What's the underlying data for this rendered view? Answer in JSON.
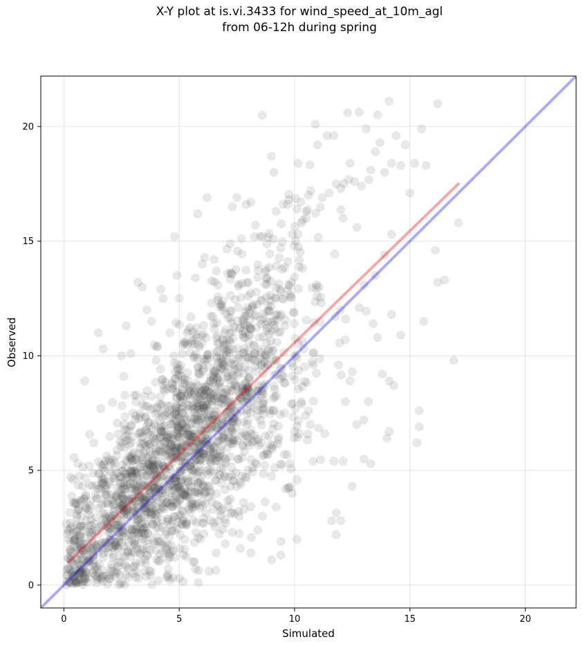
{
  "chart_data": {
    "type": "scatter",
    "title_line1": "X-Y plot at is.vi.3433 for wind_speed_at_10m_agl",
    "title_line2": "from 06-12h during spring",
    "xlabel": "Simulated",
    "ylabel": "Observed",
    "xlim": [
      -1.0,
      22.2
    ],
    "ylim": [
      -1.0,
      22.2
    ],
    "xticks": [
      0,
      5,
      10,
      15,
      20
    ],
    "yticks": [
      0,
      5,
      10,
      15,
      20
    ],
    "grid": true,
    "point_color": "#444444",
    "point_opacity": 0.12,
    "identity_line": {
      "color": "#0000ee",
      "opacity": 0.33,
      "from": [
        -1.0,
        -1.0
      ],
      "to": [
        22.2,
        22.2
      ]
    },
    "fit_line": {
      "color": "#ee0000",
      "opacity": 0.35,
      "from": [
        0.2,
        1.0
      ],
      "to": [
        17.1,
        17.5
      ]
    },
    "points": [
      [
        0.3,
        4.7
      ],
      [
        0.4,
        3.6
      ],
      [
        0.5,
        0.6
      ],
      [
        0.6,
        5.3
      ],
      [
        0.9,
        8.9
      ],
      [
        1.1,
        5.2
      ],
      [
        1.5,
        11.0
      ],
      [
        1.6,
        7.7
      ],
      [
        1.7,
        10.3
      ],
      [
        2.5,
        10.0
      ],
      [
        2.6,
        9.1
      ],
      [
        2.7,
        11.3
      ],
      [
        2.9,
        10.1
      ],
      [
        3.0,
        7.5
      ],
      [
        3.2,
        13.2
      ],
      [
        3.4,
        13.0
      ],
      [
        3.6,
        12.0
      ],
      [
        3.8,
        11.5
      ],
      [
        4.0,
        9.8
      ],
      [
        4.2,
        12.9
      ],
      [
        4.3,
        12.5
      ],
      [
        4.6,
        11.0
      ],
      [
        4.8,
        15.2
      ],
      [
        4.9,
        13.5
      ],
      [
        5.0,
        12.5
      ],
      [
        5.2,
        10.6
      ],
      [
        5.5,
        11.7
      ],
      [
        5.7,
        13.4
      ],
      [
        5.8,
        16.2
      ],
      [
        6.0,
        14.0
      ],
      [
        6.1,
        14.3
      ],
      [
        6.2,
        16.9
      ],
      [
        6.4,
        12.3
      ],
      [
        6.6,
        13.7
      ],
      [
        6.9,
        12.0
      ],
      [
        7.1,
        13.6
      ],
      [
        7.3,
        16.5
      ],
      [
        7.5,
        16.9
      ],
      [
        7.7,
        15.1
      ],
      [
        7.9,
        16.6
      ],
      [
        8.1,
        16.7
      ],
      [
        8.3,
        15.7
      ],
      [
        8.5,
        15.2
      ],
      [
        8.6,
        20.5
      ],
      [
        8.8,
        13.4
      ],
      [
        9.0,
        18.7
      ],
      [
        9.1,
        18.0
      ],
      [
        9.2,
        16.3
      ],
      [
        9.4,
        14.7
      ],
      [
        9.5,
        16.6
      ],
      [
        9.7,
        16.6
      ],
      [
        9.9,
        15.3
      ],
      [
        10.1,
        16.4
      ],
      [
        10.3,
        15.8
      ],
      [
        10.5,
        16.0
      ],
      [
        10.6,
        17.0
      ],
      [
        10.7,
        17.2
      ],
      [
        10.9,
        20.1
      ],
      [
        11.0,
        19.2
      ],
      [
        11.2,
        16.9
      ],
      [
        11.4,
        19.6
      ],
      [
        11.5,
        17.1
      ],
      [
        11.7,
        19.6
      ],
      [
        11.8,
        17.5
      ],
      [
        12.0,
        17.3
      ],
      [
        12.1,
        16.0
      ],
      [
        12.3,
        20.6
      ],
      [
        12.4,
        18.4
      ],
      [
        12.6,
        17.6
      ],
      [
        12.7,
        15.6
      ],
      [
        12.9,
        17.4
      ],
      [
        13.1,
        19.9
      ],
      [
        13.3,
        18.1
      ],
      [
        13.5,
        18.9
      ],
      [
        13.6,
        20.5
      ],
      [
        13.7,
        19.3
      ],
      [
        13.9,
        18.0
      ],
      [
        14.1,
        21.1
      ],
      [
        14.2,
        18.4
      ],
      [
        14.4,
        19.6
      ],
      [
        14.6,
        18.3
      ],
      [
        14.8,
        19.2
      ],
      [
        15.0,
        17.1
      ],
      [
        15.2,
        18.4
      ],
      [
        15.5,
        19.9
      ],
      [
        15.7,
        18.3
      ],
      [
        16.1,
        14.6
      ],
      [
        16.2,
        21.0
      ],
      [
        16.2,
        13.2
      ],
      [
        16.5,
        13.3
      ],
      [
        17.1,
        15.8
      ],
      [
        16.9,
        9.8
      ],
      [
        15.6,
        11.5
      ],
      [
        15.3,
        6.2
      ],
      [
        15.4,
        7.6
      ],
      [
        15.4,
        6.9
      ],
      [
        14.2,
        11.8
      ],
      [
        14.6,
        10.9
      ],
      [
        14.1,
        8.9
      ],
      [
        14.3,
        8.7
      ],
      [
        13.8,
        9.2
      ],
      [
        13.6,
        10.8
      ],
      [
        13.4,
        11.4
      ],
      [
        13.2,
        8.0
      ],
      [
        13.0,
        7.2
      ],
      [
        12.7,
        7.0
      ],
      [
        12.4,
        8.9
      ],
      [
        12.2,
        8.0
      ],
      [
        12.1,
        5.4
      ],
      [
        11.7,
        5.4
      ],
      [
        11.3,
        6.6
      ],
      [
        10.8,
        5.4
      ],
      [
        10.6,
        7.6
      ],
      [
        10.3,
        7.9
      ],
      [
        10.2,
        6.6
      ],
      [
        10.0,
        6.7
      ],
      [
        10.1,
        4.6
      ],
      [
        10.1,
        2.0
      ],
      [
        9.9,
        4.0
      ],
      [
        9.6,
        4.2
      ],
      [
        9.4,
        1.9
      ],
      [
        9.4,
        1.3
      ],
      [
        9.2,
        3.4
      ],
      [
        9.0,
        1.1
      ],
      [
        8.6,
        3.0
      ],
      [
        8.4,
        2.4
      ],
      [
        8.1,
        1.4
      ],
      [
        7.8,
        3.3
      ],
      [
        7.6,
        3.0
      ],
      [
        7.3,
        2.3
      ],
      [
        7.0,
        1.8
      ],
      [
        6.6,
        1.4
      ],
      [
        6.3,
        0.6
      ],
      [
        6.0,
        2.7
      ],
      [
        5.7,
        0.7
      ],
      [
        5.3,
        2.6
      ],
      [
        5.0,
        0.3
      ],
      [
        4.8,
        1.2
      ],
      [
        4.4,
        2.2
      ],
      [
        4.1,
        0.2
      ],
      [
        3.9,
        1.9
      ],
      [
        3.5,
        0.6
      ],
      [
        3.3,
        1.4
      ],
      [
        3.0,
        0.5
      ],
      [
        2.7,
        0.8
      ],
      [
        2.4,
        2.0
      ],
      [
        2.0,
        0.4
      ],
      [
        1.7,
        1.2
      ],
      [
        1.4,
        0.1
      ],
      [
        1.2,
        2.6
      ],
      [
        0.9,
        0.3
      ],
      [
        0.7,
        1.7
      ],
      [
        0.5,
        2.0
      ],
      [
        0.3,
        1.1
      ],
      [
        0.2,
        2.0
      ],
      [
        11.6,
        2.8
      ],
      [
        11.8,
        2.2
      ],
      [
        12.0,
        2.8
      ],
      [
        13.0,
        5.5
      ],
      [
        13.3,
        5.3
      ],
      [
        14.0,
        6.4
      ],
      [
        14.1,
        6.7
      ],
      [
        11.9,
        9.6
      ],
      [
        12.2,
        10.7
      ],
      [
        12.5,
        9.3
      ],
      [
        12.8,
        12.1
      ],
      [
        13.0,
        13.1
      ],
      [
        13.5,
        13.5
      ],
      [
        13.9,
        14.4
      ],
      [
        14.2,
        15.3
      ]
    ],
    "cloud_seed": 3433
  }
}
